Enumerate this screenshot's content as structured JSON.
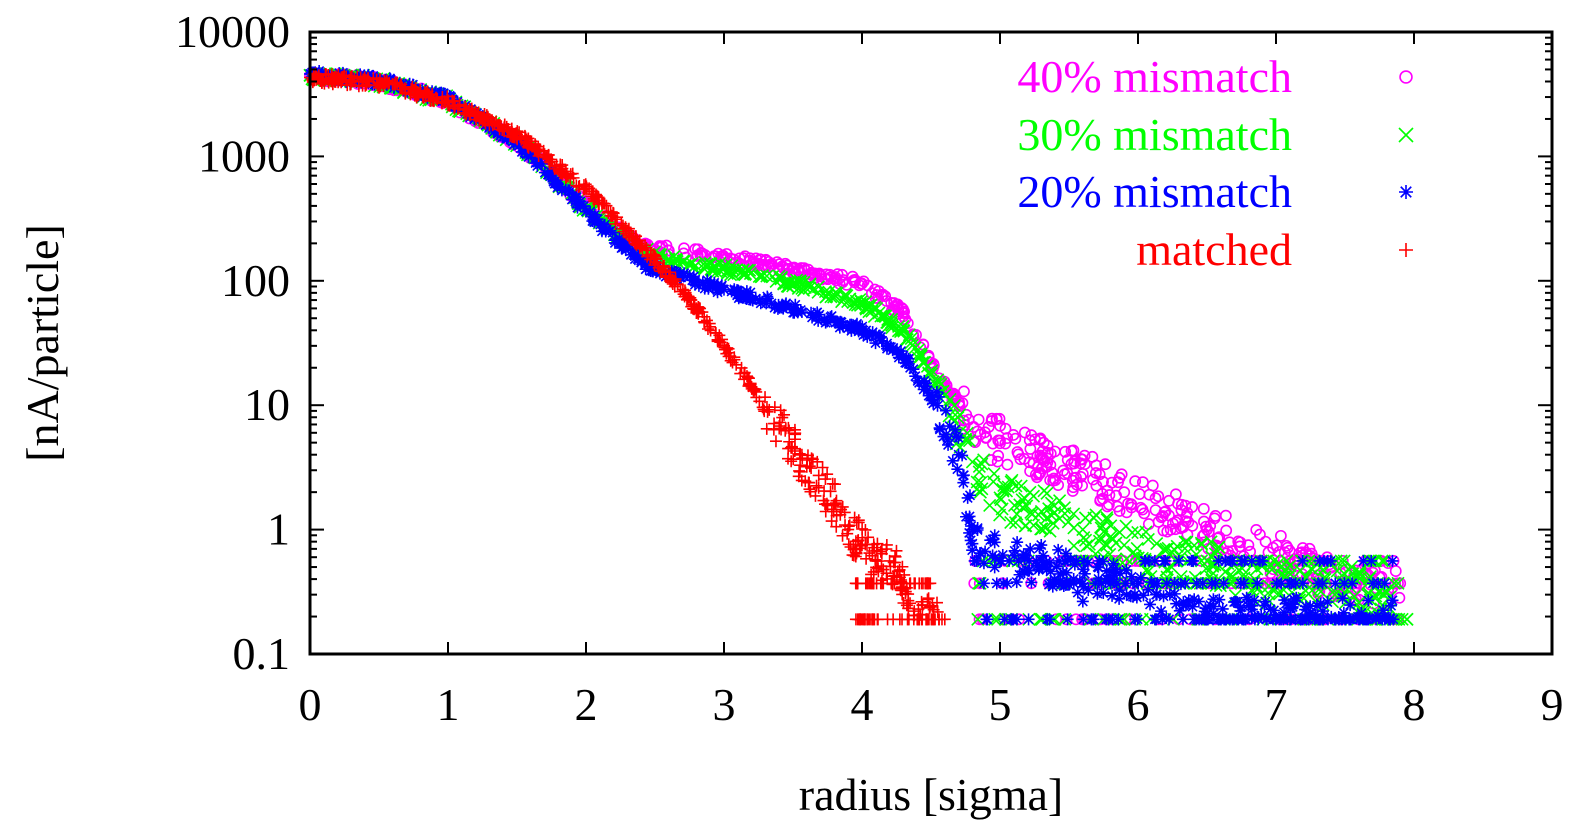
{
  "chart_data": {
    "type": "scatter",
    "xlabel": "radius [sigma]",
    "ylabel": "[nA/particle]",
    "xlim": [
      0,
      9
    ],
    "ylim": [
      0.1,
      10000
    ],
    "yscale": "log",
    "xticks": [
      "0",
      "1",
      "2",
      "3",
      "4",
      "5",
      "6",
      "7",
      "8",
      "9"
    ],
    "yticks": [
      "0.1",
      "1",
      "10",
      "100",
      "1000",
      "10000"
    ],
    "legend_position": "top-right",
    "series": [
      {
        "name": "40% mismatch",
        "marker": "circle",
        "color": "#ff00ff",
        "x": [
          0.0,
          0.5,
          1.0,
          1.5,
          2.0,
          2.4,
          2.6,
          3.0,
          3.5,
          4.0,
          4.3,
          4.6,
          4.9,
          5.0,
          5.3,
          5.6,
          5.9,
          6.2,
          6.5,
          6.8,
          7.1,
          7.5,
          7.9
        ],
        "values": [
          4500,
          4000,
          2800,
          1300,
          400,
          185,
          175,
          155,
          125,
          95,
          55,
          14,
          5.5,
          5.2,
          3.8,
          2.8,
          2.0,
          1.4,
          1.0,
          0.75,
          0.56,
          0.37,
          0.37
        ]
      },
      {
        "name": "30% mismatch",
        "marker": "cross",
        "color": "#00ff00",
        "x": [
          0.0,
          0.5,
          1.0,
          1.5,
          2.0,
          2.4,
          2.6,
          3.0,
          3.5,
          4.0,
          4.3,
          4.6,
          4.8,
          5.0,
          5.3,
          5.6,
          5.9,
          6.2,
          6.5,
          6.8,
          7.1,
          7.5,
          7.95
        ],
        "values": [
          4500,
          4000,
          2800,
          1300,
          380,
          170,
          150,
          125,
          95,
          65,
          40,
          12,
          3.5,
          1.8,
          1.4,
          1.0,
          0.75,
          0.56,
          0.56,
          0.37,
          0.37,
          0.37,
          0.19
        ]
      },
      {
        "name": "20% mismatch",
        "marker": "asterisk",
        "color": "#0000ff",
        "x": [
          0.0,
          0.5,
          1.0,
          1.5,
          2.0,
          2.4,
          2.6,
          3.0,
          3.5,
          4.0,
          4.3,
          4.5,
          4.7,
          4.8,
          5.0,
          5.3,
          5.6,
          6.0,
          6.5,
          7.0,
          7.5,
          7.85
        ],
        "values": [
          4600,
          4100,
          2900,
          1300,
          360,
          140,
          115,
          85,
          60,
          40,
          25,
          12,
          4.0,
          1.0,
          0.56,
          0.56,
          0.37,
          0.37,
          0.19,
          0.19,
          0.19,
          0.19
        ]
      },
      {
        "name": "matched",
        "marker": "plus",
        "color": "#ff0000",
        "x": [
          0.0,
          0.5,
          1.0,
          1.5,
          2.0,
          2.4,
          2.6,
          2.8,
          3.0,
          3.2,
          3.4,
          3.6,
          3.8,
          3.9,
          4.0,
          4.1,
          4.2,
          4.3,
          4.4,
          4.6
        ],
        "values": [
          4300,
          3900,
          2800,
          1500,
          550,
          190,
          110,
          60,
          30,
          14,
          6.5,
          3.2,
          1.6,
          1.0,
          0.75,
          0.56,
          0.56,
          0.37,
          0.19,
          0.19
        ]
      }
    ]
  }
}
